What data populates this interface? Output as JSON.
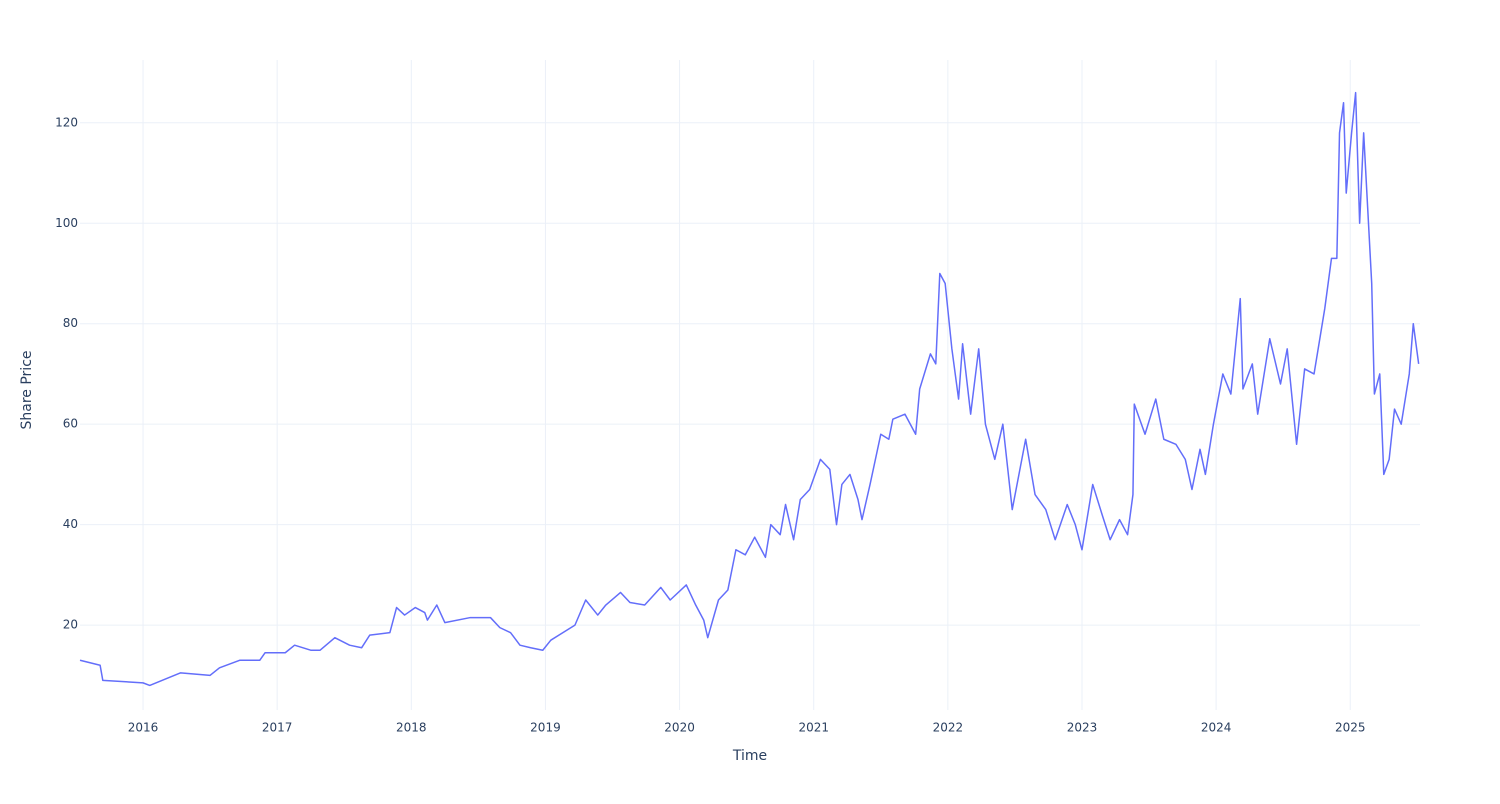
{
  "chart_data": {
    "type": "line",
    "x_label": "Time",
    "y_label": "Share Price",
    "xlim": [
      2015.53,
      2025.52
    ],
    "ylim": [
      3.1,
      132.5
    ],
    "xticks": [
      2016,
      2017,
      2018,
      2019,
      2020,
      2021,
      2022,
      2023,
      2024,
      2025
    ],
    "yticks": [
      20,
      40,
      60,
      80,
      100,
      120
    ],
    "grid": true,
    "series": [
      {
        "name": "Share Price",
        "color": "#636efa",
        "x": [
          2015.53,
          2015.68,
          2015.7,
          2016.0,
          2016.05,
          2016.28,
          2016.5,
          2016.57,
          2016.72,
          2016.87,
          2016.91,
          2017.06,
          2017.13,
          2017.25,
          2017.32,
          2017.43,
          2017.54,
          2017.63,
          2017.69,
          2017.84,
          2017.89,
          2017.95,
          2018.03,
          2018.1,
          2018.12,
          2018.19,
          2018.25,
          2018.44,
          2018.59,
          2018.66,
          2018.74,
          2018.81,
          2018.89,
          2018.98,
          2019.04,
          2019.22,
          2019.3,
          2019.39,
          2019.45,
          2019.56,
          2019.63,
          2019.74,
          2019.86,
          2019.93,
          2020.05,
          2020.12,
          2020.18,
          2020.21,
          2020.29,
          2020.36,
          2020.42,
          2020.49,
          2020.56,
          2020.64,
          2020.68,
          2020.75,
          2020.79,
          2020.85,
          2020.9,
          2020.97,
          2021.05,
          2021.12,
          2021.17,
          2021.21,
          2021.27,
          2021.33,
          2021.36,
          2021.42,
          2021.5,
          2021.56,
          2021.59,
          2021.68,
          2021.76,
          2021.79,
          2021.87,
          2021.91,
          2021.94,
          2021.98,
          2022.03,
          2022.08,
          2022.11,
          2022.17,
          2022.23,
          2022.28,
          2022.35,
          2022.41,
          2022.48,
          2022.58,
          2022.65,
          2022.73,
          2022.8,
          2022.89,
          2022.95,
          2023.0,
          2023.08,
          2023.15,
          2023.21,
          2023.28,
          2023.34,
          2023.38,
          2023.39,
          2023.47,
          2023.55,
          2023.61,
          2023.7,
          2023.77,
          2023.82,
          2023.88,
          2023.92,
          2023.98,
          2024.05,
          2024.11,
          2024.18,
          2024.2,
          2024.27,
          2024.31,
          2024.4,
          2024.48,
          2024.53,
          2024.6,
          2024.66,
          2024.73,
          2024.81,
          2024.86,
          2024.9,
          2024.92,
          2024.95,
          2024.97,
          2025.01,
          2025.04,
          2025.07,
          2025.1,
          2025.13,
          2025.16,
          2025.18,
          2025.22,
          2025.25,
          2025.29,
          2025.33,
          2025.38,
          2025.44,
          2025.47,
          2025.51
        ],
        "values": [
          13,
          12,
          9,
          8.5,
          8,
          10.5,
          10,
          11.5,
          13,
          13,
          14.5,
          14.5,
          16,
          15,
          15,
          17.5,
          16,
          15.5,
          18,
          18.5,
          23.5,
          22,
          23.5,
          22.5,
          21,
          24,
          20.5,
          21.5,
          21.5,
          19.5,
          18.5,
          16,
          15.5,
          15,
          17,
          20,
          25,
          22,
          24,
          26.5,
          24.5,
          24,
          27.5,
          25,
          28,
          24,
          21,
          17.5,
          25,
          27,
          35,
          34,
          37.5,
          33.5,
          40,
          38,
          44,
          37,
          45,
          47,
          53,
          51,
          40,
          48,
          50,
          45,
          41,
          48,
          58,
          57,
          61,
          62,
          58,
          67,
          74,
          72,
          90,
          88,
          75,
          65,
          76,
          62,
          75,
          60,
          53,
          60,
          43,
          57,
          46,
          43,
          37,
          44,
          40,
          35,
          48,
          42,
          37,
          41,
          38,
          46,
          64,
          58,
          65,
          57,
          56,
          53,
          47,
          55,
          50,
          60,
          70,
          66,
          85,
          67,
          72,
          62,
          77,
          68,
          75,
          56,
          71,
          70,
          83,
          93,
          93,
          118,
          124,
          106,
          118,
          126,
          100,
          118,
          103,
          88,
          66,
          70,
          50,
          53,
          63,
          60,
          70,
          80,
          72
        ]
      }
    ]
  }
}
